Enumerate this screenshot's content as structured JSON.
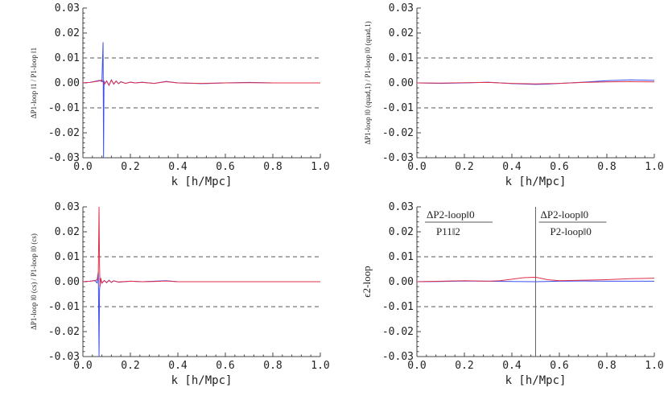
{
  "chart_data": [
    {
      "type": "line",
      "ylabel": "ΔP1-loop ‖1 / P1-loop ‖1",
      "xlabel": "k [h/Mpc]",
      "xlim": [
        0.0,
        1.0
      ],
      "ylim": [
        -0.03,
        0.03
      ],
      "xticks": [
        "0.0",
        "0.2",
        "0.4",
        "0.6",
        "0.8",
        "1.0"
      ],
      "yticks": [
        "-0.03",
        "-0.02",
        "-0.01",
        "0.00",
        "0.01",
        "0.02",
        "0.03"
      ],
      "reference_lines": [
        0.01,
        -0.01
      ],
      "series": [
        {
          "color": "#3b4ff0",
          "x": [
            0.0,
            0.03,
            0.05,
            0.07,
            0.08,
            0.085,
            0.087,
            0.089,
            0.092,
            0.1,
            0.11,
            0.12,
            0.13,
            0.14,
            0.15,
            0.16,
            0.18,
            0.2,
            0.22,
            0.25,
            0.3,
            0.35,
            0.4,
            0.5,
            0.6,
            0.7,
            0.8,
            0.9,
            1.0
          ],
          "y": [
            0.0,
            0.0002,
            0.0006,
            0.001,
            0.0005,
            0.0163,
            -0.03,
            0.0008,
            -0.0004,
            0.0008,
            -0.001,
            0.0012,
            -0.0005,
            0.0008,
            -0.0003,
            0.0005,
            -0.0002,
            0.0003,
            0.0,
            0.0003,
            -0.0002,
            0.0006,
            0.0,
            -0.0003,
            0.0,
            0.0002,
            0.0,
            0.0,
            0.0
          ]
        },
        {
          "color": "#e0304a",
          "x": [
            0.0,
            0.03,
            0.05,
            0.07,
            0.08,
            0.09,
            0.1,
            0.11,
            0.12,
            0.13,
            0.14,
            0.15,
            0.16,
            0.18,
            0.2,
            0.22,
            0.25,
            0.3,
            0.35,
            0.4,
            0.5,
            0.6,
            0.7,
            0.8,
            0.9,
            1.0
          ],
          "y": [
            0.0,
            0.0002,
            0.0005,
            0.0008,
            0.0012,
            -0.0005,
            0.0007,
            -0.0009,
            0.0011,
            -0.0004,
            0.0007,
            -0.0003,
            0.0004,
            -0.0002,
            0.0003,
            0.0,
            0.0002,
            -0.0002,
            0.0005,
            0.0,
            -0.0002,
            0.0,
            0.0001,
            0.0,
            0.0,
            0.0
          ]
        }
      ]
    },
    {
      "type": "line",
      "ylabel": "ΔP1-loop ‖0 (quad,1) / P1-loop ‖0 (quad,1)",
      "xlabel": "k [h/Mpc]",
      "xlim": [
        0.0,
        1.0
      ],
      "ylim": [
        -0.03,
        0.03
      ],
      "xticks": [
        "0.0",
        "0.2",
        "0.4",
        "0.6",
        "0.8",
        "1.0"
      ],
      "yticks": [
        "-0.03",
        "-0.02",
        "-0.01",
        "0.00",
        "0.01",
        "0.02",
        "0.03"
      ],
      "reference_lines": [
        0.01,
        -0.01
      ],
      "series": [
        {
          "color": "#3b4ff0",
          "x": [
            0.0,
            0.1,
            0.2,
            0.3,
            0.4,
            0.5,
            0.55,
            0.6,
            0.7,
            0.8,
            0.9,
            1.0
          ],
          "y": [
            0.0,
            -0.0002,
            0.0,
            0.0003,
            -0.0003,
            -0.0006,
            -0.0005,
            -0.0002,
            0.0003,
            0.0009,
            0.0012,
            0.001
          ]
        },
        {
          "color": "#e0304a",
          "x": [
            0.0,
            0.1,
            0.2,
            0.3,
            0.4,
            0.5,
            0.6,
            0.7,
            0.8,
            0.9,
            1.0
          ],
          "y": [
            0.0,
            -0.0001,
            0.0001,
            0.0002,
            -0.0002,
            -0.0004,
            -0.0002,
            0.0002,
            0.0004,
            0.0005,
            0.0004
          ]
        }
      ]
    },
    {
      "type": "line",
      "ylabel": "ΔP1-loop ‖0 (cs) / P1-loop ‖0 (cs)",
      "xlabel": "k [h/Mpc]",
      "xlim": [
        0.0,
        1.0
      ],
      "ylim": [
        -0.03,
        0.03
      ],
      "xticks": [
        "0.0",
        "0.2",
        "0.4",
        "0.6",
        "0.8",
        "1.0"
      ],
      "yticks": [
        "-0.03",
        "-0.02",
        "-0.01",
        "0.00",
        "0.01",
        "0.02",
        "0.03"
      ],
      "reference_lines": [
        0.01,
        -0.01
      ],
      "series": [
        {
          "color": "#3b4ff0",
          "x": [
            0.0,
            0.03,
            0.05,
            0.06,
            0.065,
            0.068,
            0.07,
            0.075,
            0.08,
            0.09,
            0.1,
            0.11,
            0.12,
            0.13,
            0.15,
            0.2,
            0.25,
            0.3,
            0.35,
            0.4,
            0.6,
            0.8,
            1.0
          ],
          "y": [
            0.0,
            0.0002,
            0.0005,
            -0.0005,
            0.004,
            -0.03,
            -0.003,
            0.001,
            -0.0006,
            0.0005,
            -0.0004,
            0.0006,
            -0.0003,
            0.0004,
            -0.0002,
            0.0002,
            0.0,
            0.0002,
            0.0004,
            0.0,
            0.0,
            0.0,
            0.0
          ]
        },
        {
          "color": "#e0304a",
          "x": [
            0.0,
            0.03,
            0.05,
            0.06,
            0.065,
            0.068,
            0.07,
            0.072,
            0.075,
            0.08,
            0.09,
            0.1,
            0.11,
            0.12,
            0.13,
            0.15,
            0.2,
            0.25,
            0.3,
            0.35,
            0.4,
            0.6,
            0.8,
            1.0
          ],
          "y": [
            0.0,
            0.0002,
            0.0004,
            0.0008,
            0.004,
            0.03,
            0.007,
            -0.002,
            0.0015,
            -0.0005,
            0.0004,
            -0.0003,
            0.0005,
            -0.0002,
            0.0003,
            -0.0001,
            0.0002,
            0.0,
            0.0001,
            0.0003,
            0.0,
            0.0,
            0.0,
            0.0
          ]
        }
      ]
    },
    {
      "type": "line",
      "ylabel": "ϵ2-loop",
      "xlabel": "k [h/Mpc]",
      "xlim": [
        0.0,
        1.0
      ],
      "ylim": [
        -0.03,
        0.03
      ],
      "xticks": [
        "0.0",
        "0.2",
        "0.4",
        "0.6",
        "0.8",
        "1.0"
      ],
      "yticks": [
        "-0.03",
        "-0.02",
        "-0.01",
        "0.00",
        "0.01",
        "0.02",
        "0.03"
      ],
      "reference_lines": [
        0.01,
        -0.01
      ],
      "vertical_line": 0.5,
      "annotations": [
        {
          "numerator": "ΔP2-loop‖0",
          "denominator": "P11‖2"
        },
        {
          "numerator": "ΔP2-loop‖0",
          "denominator": "P2-loop‖0"
        }
      ],
      "series": [
        {
          "color": "#3b4ff0",
          "x": [
            0.0,
            0.1,
            0.2,
            0.3,
            0.4,
            0.5,
            0.6,
            0.7,
            0.8,
            0.9,
            1.0
          ],
          "y": [
            0.0,
            0.0001,
            0.0003,
            0.0002,
            0.0001,
            0.0,
            0.0002,
            0.0003,
            0.0002,
            0.0002,
            0.0002
          ]
        },
        {
          "color": "#e0304a",
          "x": [
            0.0,
            0.1,
            0.2,
            0.3,
            0.35,
            0.4,
            0.45,
            0.5,
            0.55,
            0.6,
            0.7,
            0.8,
            0.9,
            1.0
          ],
          "y": [
            0.0,
            0.0002,
            0.0004,
            0.0002,
            0.0004,
            0.001,
            0.0016,
            0.0018,
            0.0008,
            0.0004,
            0.0006,
            0.0008,
            0.0012,
            0.0014
          ]
        }
      ]
    }
  ]
}
